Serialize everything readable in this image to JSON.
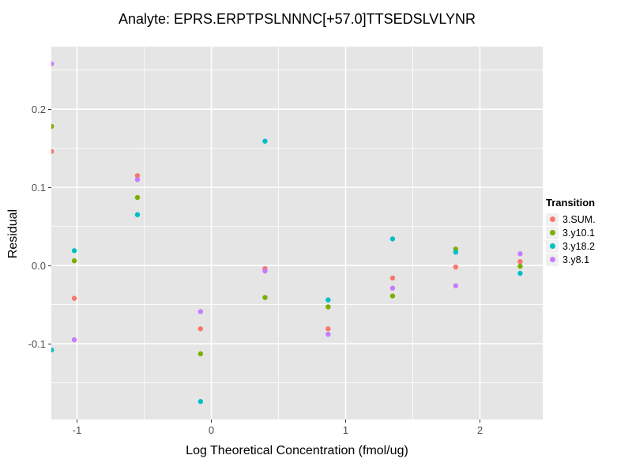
{
  "figure": {
    "title": "Analyte: EPRS.ERPTPSLNNNC[+57.0]TTSEDSLVLYNR",
    "x_axis": {
      "label": "Log Theoretical Concentration (fmol/ug)",
      "tick_labels": [
        "-1",
        "0",
        "1",
        "2"
      ],
      "tick_values": [
        -1,
        0,
        1,
        2
      ]
    },
    "y_axis": {
      "label": "Residual",
      "tick_labels": [
        "0.2",
        "0.1",
        "0.0",
        "-0.1"
      ],
      "tick_values": [
        0.2,
        0.1,
        0.0,
        -0.1
      ]
    },
    "legend": {
      "title": "Transition",
      "position": "right",
      "items": [
        {
          "label": "3.SUM.",
          "color": "#F8766D"
        },
        {
          "label": "3.y10.1",
          "color": "#7CAE00"
        },
        {
          "label": "3.y18.2",
          "color": "#00BFC4"
        },
        {
          "label": "3.y8.1",
          "color": "#C77CFF"
        }
      ]
    }
  },
  "chart_data": {
    "type": "scatter",
    "title": "Analyte: EPRS.ERPTPSLNNNC[+57.0]TTSEDSLVLYNR",
    "xlabel": "Log Theoretical Concentration (fmol/ug)",
    "ylabel": "Residual",
    "xlim": [
      -1.191,
      2.468
    ],
    "ylim": [
      -0.197,
      0.28
    ],
    "x_major_gridlines": [
      -1,
      0,
      1,
      2
    ],
    "x_minor_gridlines": [
      -0.5,
      0.5,
      1.5
    ],
    "y_major_gridlines": [
      -0.1,
      0.0,
      0.1,
      0.2
    ],
    "y_minor_gridlines": [
      -0.15,
      -0.05,
      0.05,
      0.15,
      0.25
    ],
    "grid_on": true,
    "panel_background": "#E5E5E5",
    "grid_color": "#FFFFFF",
    "tick_label_color": "#4D4D4D",
    "legend_title": "Transition",
    "legend_position": "right",
    "x": [
      -1.19,
      -1.02,
      -0.55,
      -0.08,
      0.4,
      0.87,
      1.35,
      1.82,
      2.3
    ],
    "series": [
      {
        "name": "3.SUM.",
        "color": "#F8766D",
        "values": [
          0.146,
          -0.042,
          0.115,
          -0.081,
          -0.004,
          -0.081,
          -0.016,
          -0.002,
          0.005
        ]
      },
      {
        "name": "3.y10.1",
        "color": "#7CAE00",
        "values": [
          0.178,
          0.006,
          0.087,
          -0.113,
          -0.041,
          -0.053,
          -0.039,
          0.021,
          -0.001
        ]
      },
      {
        "name": "3.y18.2",
        "color": "#00BFC4",
        "values": [
          -0.108,
          0.019,
          0.065,
          -0.174,
          0.159,
          -0.044,
          0.034,
          0.017,
          -0.01
        ]
      },
      {
        "name": "3.y8.1",
        "color": "#C77CFF",
        "values": [
          0.258,
          -0.095,
          0.11,
          -0.059,
          -0.007,
          -0.088,
          -0.029,
          -0.026,
          0.015
        ]
      }
    ]
  }
}
